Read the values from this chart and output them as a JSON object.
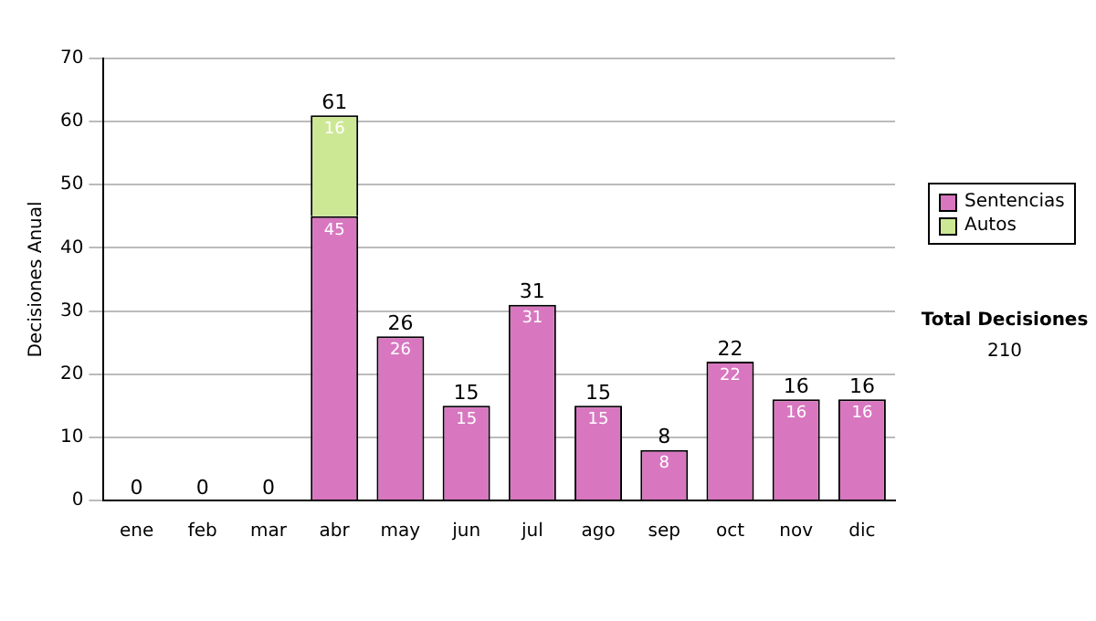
{
  "chart_data": {
    "type": "bar",
    "stacked": true,
    "ylabel": "Decisiones Anual",
    "categories": [
      "ene",
      "feb",
      "mar",
      "abr",
      "may",
      "jun",
      "jul",
      "ago",
      "sep",
      "oct",
      "nov",
      "dic"
    ],
    "series": [
      {
        "name": "Sentencias",
        "color": "#d877c0",
        "values": [
          0,
          0,
          0,
          45,
          26,
          15,
          31,
          15,
          8,
          22,
          16,
          16
        ],
        "value_labels": [
          null,
          null,
          null,
          "45",
          "26",
          "15",
          "31",
          "15",
          "8",
          "22",
          "16",
          "16"
        ]
      },
      {
        "name": "Autos",
        "color": "#cde894",
        "values": [
          0,
          0,
          0,
          16,
          0,
          0,
          0,
          0,
          0,
          0,
          0,
          0
        ],
        "value_labels": [
          null,
          null,
          null,
          "16",
          null,
          null,
          null,
          null,
          null,
          null,
          null,
          null
        ]
      }
    ],
    "totals": [
      "0",
      "0",
      "0",
      "61",
      "26",
      "15",
      "31",
      "15",
      "8",
      "22",
      "16",
      "16"
    ],
    "ylim": [
      0,
      70
    ],
    "yticks": [
      0,
      10,
      20,
      30,
      40,
      50,
      60,
      70
    ],
    "grid": "y",
    "legend": "right",
    "annotations": [
      "Total Decisiones",
      "210"
    ]
  }
}
